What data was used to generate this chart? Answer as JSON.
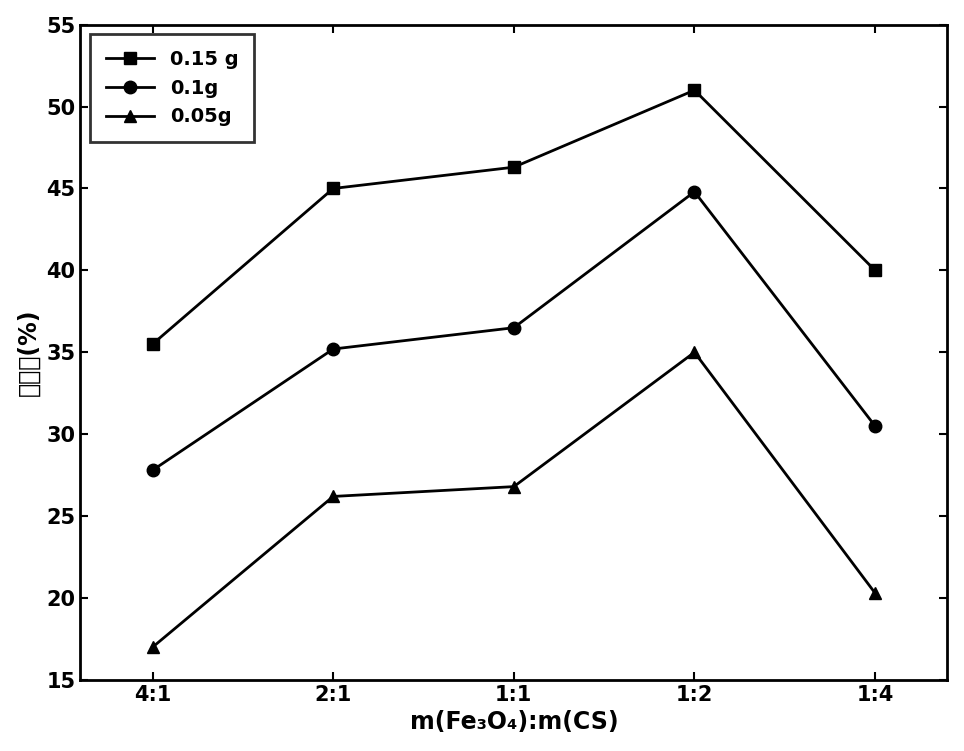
{
  "x_labels": [
    "4:1",
    "2:1",
    "1:1",
    "1:2",
    "1:4"
  ],
  "series": [
    {
      "label": "0.15 g",
      "values": [
        35.5,
        45.0,
        46.3,
        51.0,
        40.0
      ],
      "marker": "s",
      "color": "#000000"
    },
    {
      "label": "0.1g",
      "values": [
        27.8,
        35.2,
        36.5,
        44.8,
        30.5
      ],
      "marker": "o",
      "color": "#000000"
    },
    {
      "label": "0.05g",
      "values": [
        17.0,
        26.2,
        26.8,
        35.0,
        20.3
      ],
      "marker": "^",
      "color": "#000000"
    }
  ],
  "xlabel": "m(Fe₃O₄):m(CS)",
  "ylabel": "去除率(%)",
  "ylim": [
    15,
    55
  ],
  "yticks": [
    15,
    20,
    25,
    30,
    35,
    40,
    45,
    50,
    55
  ],
  "title": "",
  "legend_loc": "upper left",
  "linewidth": 2.0,
  "markersize": 9,
  "xlabel_fontsize": 17,
  "ylabel_fontsize": 17,
  "tick_fontsize": 15,
  "legend_fontsize": 14
}
